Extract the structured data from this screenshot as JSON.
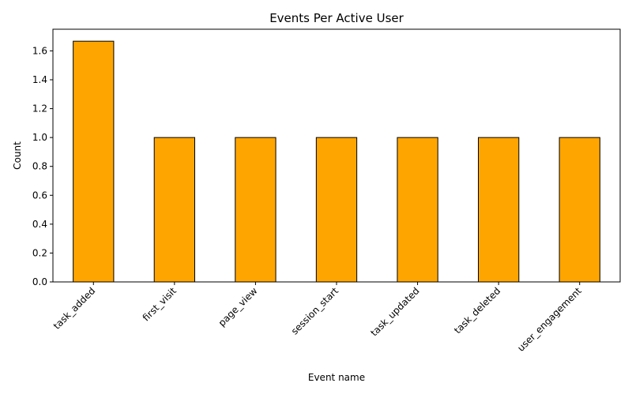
{
  "chart_data": {
    "type": "bar",
    "title": "Events Per Active User",
    "xlabel": "Event name",
    "ylabel": "Count",
    "categories": [
      "task_added",
      "first_visit",
      "page_view",
      "session_start",
      "task_updated",
      "task_deleted",
      "user_engagement"
    ],
    "values": [
      1.667,
      1.0,
      1.0,
      1.0,
      1.0,
      1.0,
      1.0
    ],
    "ylim": [
      0,
      1.75
    ],
    "yticks": [
      "0.0",
      "0.2",
      "0.4",
      "0.6",
      "0.8",
      "1.0",
      "1.2",
      "1.4",
      "1.6"
    ],
    "grid": false,
    "legend": "none",
    "bar_color": "#ffa500",
    "edge_color": "#000000"
  }
}
